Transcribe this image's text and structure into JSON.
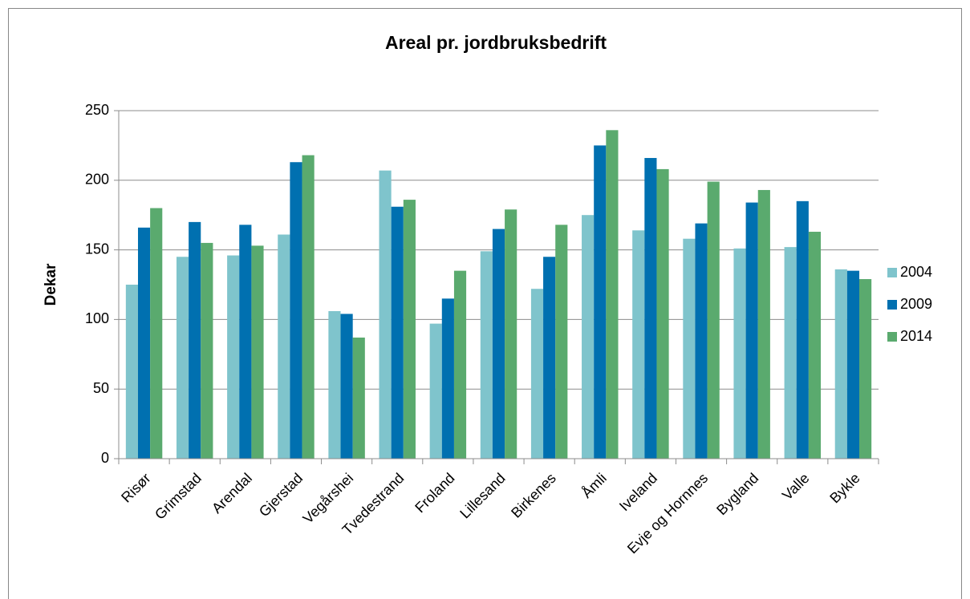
{
  "chart_data": {
    "type": "bar",
    "title": "Areal pr. jordbruksbedrift",
    "y_label": "Dekar",
    "categories": [
      "Risør",
      "Grimstad",
      "Arendal",
      "Gjerstad",
      "Vegårshei",
      "Tvedestrand",
      "Froland",
      "Lillesand",
      "Birkenes",
      "Åmli",
      "Iveland",
      "Evje og Hornnes",
      "Bygland",
      "Valle",
      "Bykle"
    ],
    "series": [
      {
        "name": "2004",
        "color": "#7fc4cc",
        "values": [
          125,
          145,
          146,
          161,
          106,
          207,
          97,
          149,
          122,
          175,
          164,
          158,
          151,
          152,
          136
        ]
      },
      {
        "name": "2009",
        "color": "#0070b0",
        "values": [
          166,
          170,
          168,
          213,
          104,
          181,
          115,
          165,
          145,
          225,
          216,
          169,
          184,
          185,
          135
        ]
      },
      {
        "name": "2014",
        "color": "#5aaa6e",
        "values": [
          180,
          155,
          153,
          218,
          87,
          186,
          135,
          179,
          168,
          236,
          208,
          199,
          193,
          163,
          129
        ]
      }
    ],
    "ylim": [
      0,
      250
    ],
    "yticks": [
      0,
      50,
      100,
      150,
      200,
      250
    ],
    "grid": true,
    "legend": "right"
  }
}
